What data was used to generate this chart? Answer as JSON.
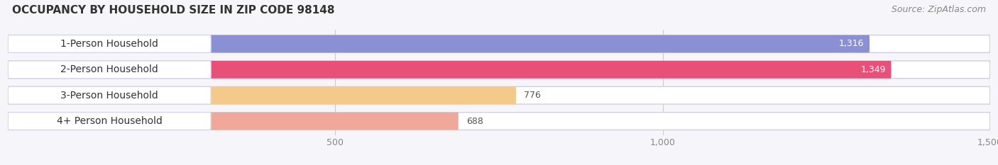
{
  "title": "OCCUPANCY BY HOUSEHOLD SIZE IN ZIP CODE 98148",
  "source": "Source: ZipAtlas.com",
  "categories": [
    "1-Person Household",
    "2-Person Household",
    "3-Person Household",
    "4+ Person Household"
  ],
  "values": [
    1316,
    1349,
    776,
    688
  ],
  "bar_colors": [
    "#8b8fd4",
    "#e8507a",
    "#f5c98a",
    "#f0a898"
  ],
  "xlim_max": 1580,
  "data_max": 1500,
  "xticks": [
    500,
    1000,
    1500
  ],
  "title_fontsize": 11,
  "source_fontsize": 9,
  "label_fontsize": 10,
  "value_fontsize": 9,
  "background_color": "#f5f5fa",
  "bar_bg_color": "#e6e6ee",
  "bar_height": 0.68,
  "bar_spacing": 1.0
}
